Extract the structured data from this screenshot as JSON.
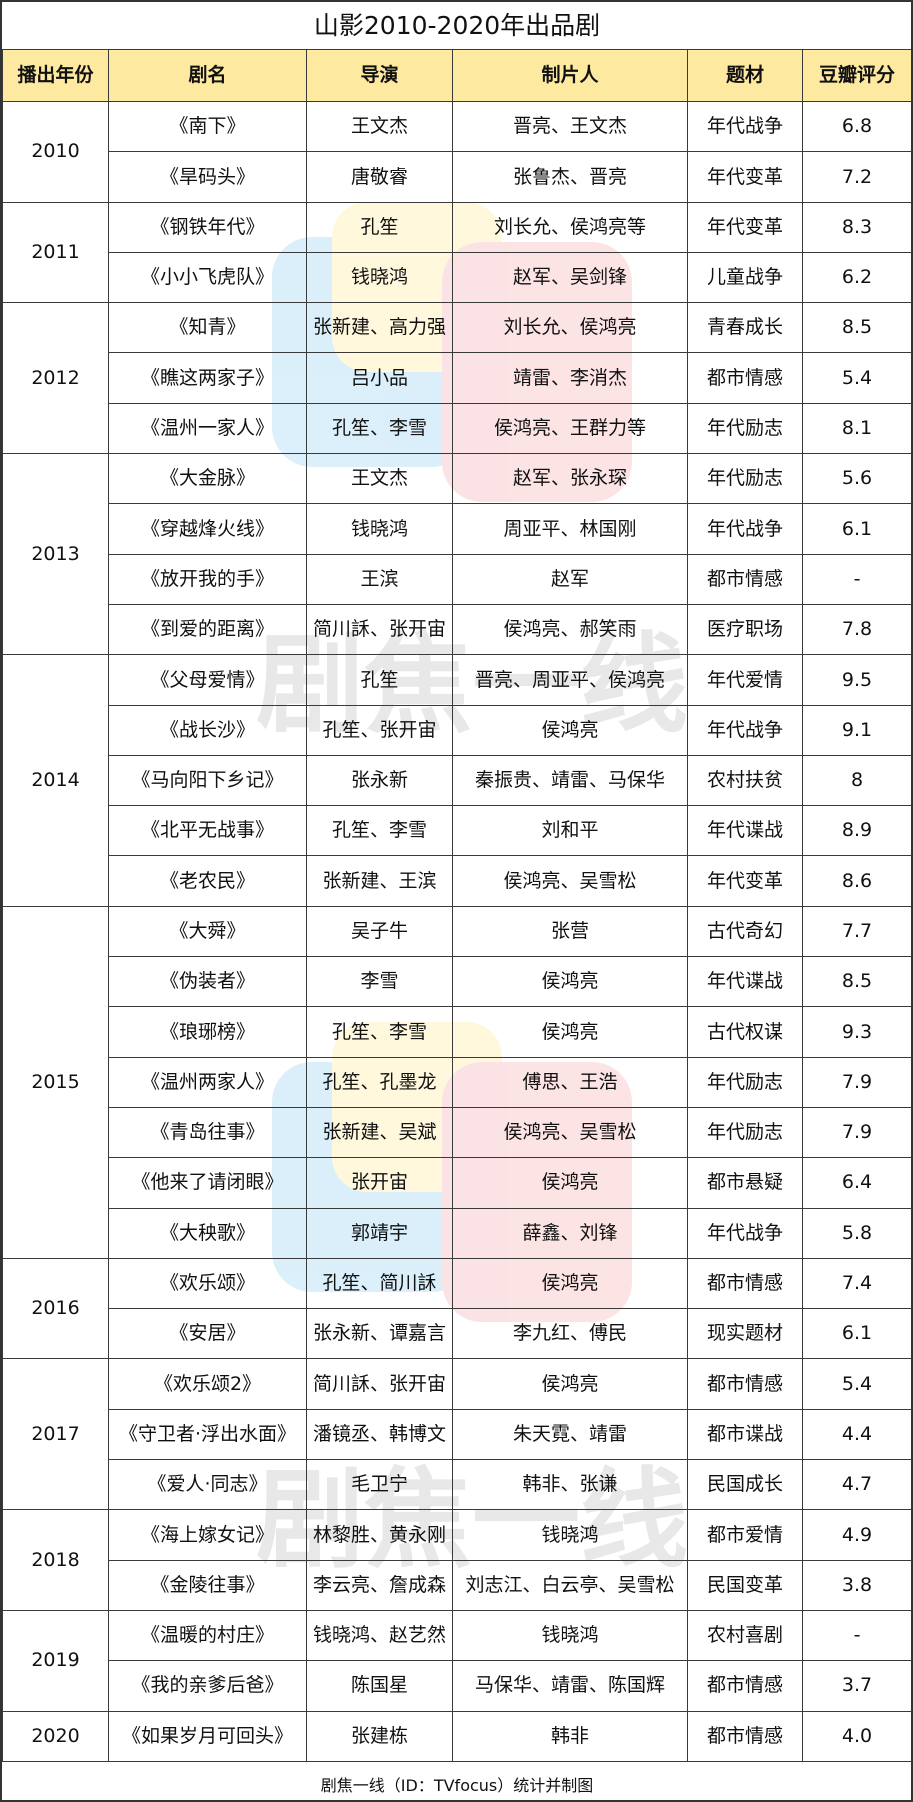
{
  "title": "山影2010-2020年出品剧",
  "headers": [
    "播出年份",
    "剧名",
    "导演",
    "制片人",
    "题材",
    "豆瓣评分"
  ],
  "watermark": {
    "text": "剧焦一线",
    "icon": "tv-logo-icon"
  },
  "groups": [
    {
      "year": "2010",
      "rows": [
        {
          "name": "《南下》",
          "director": "王文杰",
          "producer": "晋亮、王文杰",
          "genre": "年代战争",
          "score": "6.8"
        },
        {
          "name": "《旱码头》",
          "director": "唐敬睿",
          "producer": "张鲁杰、晋亮",
          "genre": "年代变革",
          "score": "7.2"
        }
      ]
    },
    {
      "year": "2011",
      "rows": [
        {
          "name": "《钢铁年代》",
          "director": "孔笙",
          "producer": "刘长允、侯鸿亮等",
          "genre": "年代变革",
          "score": "8.3"
        },
        {
          "name": "《小小飞虎队》",
          "director": "钱晓鸿",
          "producer": "赵军、吴剑锋",
          "genre": "儿童战争",
          "score": "6.2"
        }
      ]
    },
    {
      "year": "2012",
      "rows": [
        {
          "name": "《知青》",
          "director": "张新建、高力强",
          "producer": "刘长允、侯鸿亮",
          "genre": "青春成长",
          "score": "8.5"
        },
        {
          "name": "《瞧这两家子》",
          "director": "吕小品",
          "producer": "靖雷、李消杰",
          "genre": "都市情感",
          "score": "5.4"
        },
        {
          "name": "《温州一家人》",
          "director": "孔笙、李雪",
          "producer": "侯鸿亮、王群力等",
          "genre": "年代励志",
          "score": "8.1"
        }
      ]
    },
    {
      "year": "2013",
      "rows": [
        {
          "name": "《大金脉》",
          "director": "王文杰",
          "producer": "赵军、张永琛",
          "genre": "年代励志",
          "score": "5.6"
        },
        {
          "name": "《穿越烽火线》",
          "director": "钱晓鸿",
          "producer": "周亚平、林国刚",
          "genre": "年代战争",
          "score": "6.1"
        },
        {
          "name": "《放开我的手》",
          "director": "王滨",
          "producer": "赵军",
          "genre": "都市情感",
          "score": "-"
        },
        {
          "name": "《到爱的距离》",
          "director": "简川訸、张开宙",
          "producer": "侯鸿亮、郝笑雨",
          "genre": "医疗职场",
          "score": "7.8"
        }
      ]
    },
    {
      "year": "2014",
      "rows": [
        {
          "name": "《父母爱情》",
          "director": "孔笙",
          "producer": "晋亮、周亚平、侯鸿亮",
          "genre": "年代爱情",
          "score": "9.5"
        },
        {
          "name": "《战长沙》",
          "director": "孔笙、张开宙",
          "producer": "侯鸿亮",
          "genre": "年代战争",
          "score": "9.1"
        },
        {
          "name": "《马向阳下乡记》",
          "director": "张永新",
          "producer": "秦振贵、靖雷、马保华",
          "genre": "农村扶贫",
          "score": "8"
        },
        {
          "name": "《北平无战事》",
          "director": "孔笙、李雪",
          "producer": "刘和平",
          "genre": "年代谍战",
          "score": "8.9"
        },
        {
          "name": "《老农民》",
          "director": "张新建、王滨",
          "producer": "侯鸿亮、吴雪松",
          "genre": "年代变革",
          "score": "8.6"
        }
      ]
    },
    {
      "year": "2015",
      "rows": [
        {
          "name": "《大舜》",
          "director": "吴子牛",
          "producer": "张营",
          "genre": "古代奇幻",
          "score": "7.7"
        },
        {
          "name": "《伪装者》",
          "director": "李雪",
          "producer": "侯鸿亮",
          "genre": "年代谍战",
          "score": "8.5"
        },
        {
          "name": "《琅琊榜》",
          "director": "孔笙、李雪",
          "producer": "侯鸿亮",
          "genre": "古代权谋",
          "score": "9.3"
        },
        {
          "name": "《温州两家人》",
          "director": "孔笙、孔墨龙",
          "producer": "傅思、王浩",
          "genre": "年代励志",
          "score": "7.9"
        },
        {
          "name": "《青岛往事》",
          "director": "张新建、吴斌",
          "producer": "侯鸿亮、吴雪松",
          "genre": "年代励志",
          "score": "7.9"
        },
        {
          "name": "《他来了请闭眼》",
          "director": "张开宙",
          "producer": "侯鸿亮",
          "genre": "都市悬疑",
          "score": "6.4"
        },
        {
          "name": "《大秧歌》",
          "director": "郭靖宇",
          "producer": "薛鑫、刘锋",
          "genre": "年代战争",
          "score": "5.8"
        }
      ]
    },
    {
      "year": "2016",
      "rows": [
        {
          "name": "《欢乐颂》",
          "director": "孔笙、简川訸",
          "producer": "侯鸿亮",
          "genre": "都市情感",
          "score": "7.4"
        },
        {
          "name": "《安居》",
          "director": "张永新、谭嘉言",
          "producer": "李九红、傅民",
          "genre": "现实题材",
          "score": "6.1"
        }
      ]
    },
    {
      "year": "2017",
      "rows": [
        {
          "name": "《欢乐颂2》",
          "director": "简川訸、张开宙",
          "producer": "侯鸿亮",
          "genre": "都市情感",
          "score": "5.4"
        },
        {
          "name": "《守卫者·浮出水面》",
          "director": "潘镜丞、韩博文",
          "producer": "朱天霓、靖雷",
          "genre": "都市谍战",
          "score": "4.4"
        },
        {
          "name": "《爱人·同志》",
          "director": "毛卫宁",
          "producer": "韩非、张谦",
          "genre": "民国成长",
          "score": "4.7"
        }
      ]
    },
    {
      "year": "2018",
      "rows": [
        {
          "name": "《海上嫁女记》",
          "director": "林黎胜、黄永刚",
          "producer": "钱晓鸿",
          "genre": "都市爱情",
          "score": "4.9"
        },
        {
          "name": "《金陵往事》",
          "director": "李云亮、詹成森",
          "producer": "刘志江、白云亭、吴雪松",
          "genre": "民国变革",
          "score": "3.8"
        }
      ]
    },
    {
      "year": "2019",
      "rows": [
        {
          "name": "《温暖的村庄》",
          "director": "钱晓鸿、赵艺然",
          "producer": "钱晓鸿",
          "genre": "农村喜剧",
          "score": "-"
        },
        {
          "name": "《我的亲爹后爸》",
          "director": "陈国星",
          "producer": "马保华、靖雷、陈国辉",
          "genre": "都市情感",
          "score": "3.7"
        }
      ]
    },
    {
      "year": "2020",
      "rows": [
        {
          "name": "《如果岁月可回头》",
          "director": "张建栋",
          "producer": "韩非",
          "genre": "都市情感",
          "score": "4.0"
        }
      ]
    }
  ],
  "footer": "剧焦一线（ID：TVfocus）统计并制图"
}
